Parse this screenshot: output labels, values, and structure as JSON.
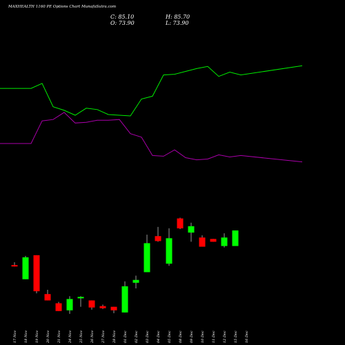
{
  "header": {
    "title": "MAXHEALTH 1160  PE Options  Chart MunafaSutra.com",
    "open": "C: 85.10",
    "close": "O: 73.90",
    "high": "H: 85.70",
    "low": "L: 73.90"
  },
  "colors": {
    "background": "#000000",
    "up": "#00ff00",
    "down": "#ff0000",
    "upper_line": "#00ee00",
    "lower_line": "#aa00aa",
    "text": "#ffffff"
  },
  "chart_data": {
    "type": "candlestick",
    "x": [
      "17 Nov",
      "18 Nov",
      "19 Nov",
      "20 Nov",
      "21 Nov",
      "24 Nov",
      "25 Nov",
      "26 Nov",
      "27 Nov",
      "28 Nov",
      "01 Dec",
      "02 Dec",
      "03 Dec",
      "04 Dec",
      "05 Dec",
      "08 Dec",
      "09 Dec",
      "10 Dec",
      "11 Dec",
      "12 Dec",
      "15 Dec",
      "16 Dec"
    ],
    "candles": [
      {
        "open": 34,
        "close": 33.5,
        "high": 38,
        "low": 32
      },
      {
        "open": 14,
        "close": 45,
        "high": 47,
        "low": 14
      },
      {
        "open": 48,
        "close": -3,
        "high": 48,
        "low": -6
      },
      {
        "open": -7,
        "close": -16,
        "high": -1,
        "low": -16
      },
      {
        "open": -20,
        "close": -31,
        "high": -18,
        "low": -31
      },
      {
        "open": -30,
        "close": -14,
        "high": -10,
        "low": -35
      },
      {
        "open": -13,
        "close": -11,
        "high": -10,
        "low": -25
      },
      {
        "open": -16,
        "close": -26,
        "high": -16,
        "low": -29
      },
      {
        "open": -24,
        "close": -27,
        "high": -22,
        "low": -28
      },
      {
        "open": -25,
        "close": -30,
        "high": -25,
        "low": -34
      },
      {
        "open": -33,
        "close": 4,
        "high": 11,
        "low": -33
      },
      {
        "open": 9,
        "close": 13,
        "high": 19,
        "low": 1
      },
      {
        "open": 24,
        "close": 65,
        "high": 77,
        "low": 24
      },
      {
        "open": 75,
        "close": 68,
        "high": 88,
        "low": 67
      },
      {
        "open": 36,
        "close": 72,
        "high": 86,
        "low": 33
      },
      {
        "open": 100,
        "close": 86,
        "high": 101,
        "low": 85
      },
      {
        "open": 80,
        "close": 89,
        "high": 94,
        "low": 67
      },
      {
        "open": 73,
        "close": 60,
        "high": 76,
        "low": 60
      },
      {
        "open": 71,
        "close": 67,
        "high": 71,
        "low": 67
      },
      {
        "open": 61,
        "close": 73,
        "high": 79,
        "low": 59
      },
      {
        "open": 61,
        "close": 83,
        "high": 83,
        "low": 61
      },
      {
        "open": 0,
        "close": 0,
        "high": 0,
        "low": 0
      }
    ],
    "upper_band": [
      284,
      284,
      291,
      258,
      253,
      246,
      256,
      254,
      247,
      246,
      245,
      269,
      273,
      303,
      304,
      308,
      312,
      315,
      301,
      307,
      303,
      316
    ],
    "lower_band": [
      206,
      206,
      238,
      240,
      250,
      235,
      236,
      239,
      239,
      240,
      220,
      215,
      189,
      188,
      197,
      186,
      183,
      184,
      190,
      187,
      189,
      180
    ],
    "ylim": [
      -40,
      370
    ]
  }
}
